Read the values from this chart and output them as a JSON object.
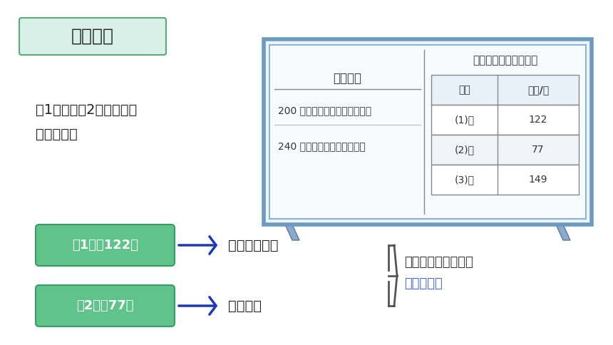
{
  "bg_color": "#ffffff",
  "title_box_text": "探索新知",
  "title_box_bg": "#d9f0e8",
  "title_box_border": "#5aaa7a",
  "question_text": "（1）班和（2）班加起来\n能获奖吗？",
  "board_bg": "#f0f4f8",
  "board_border": "#7a9abf",
  "reward_title": "回收奖励",
  "reward_rows": [
    "200 节废电池，奖励十把手电筒",
    "240 节废电池，奖励一个足球"
  ],
  "table_title": "二年级回收废电池情况",
  "table_headers": [
    "班级",
    "数量/节"
  ],
  "table_rows": [
    [
      "(1)班",
      "122"
    ],
    [
      "(2)班",
      "77"
    ],
    [
      "(3)班",
      "149"
    ]
  ],
  "box1_text": "（1）班122节",
  "box2_text": "（2）班77节",
  "box_bg": "#5ec48a",
  "box_border": "#3a9a6a",
  "arrow_text1": "一百二十多节",
  "arrow_text2": "七十多节",
  "result_text1": "大约在一百九十多，",
  "result_text2": "不能获奖。",
  "result_color1": "#333333",
  "result_color2": "#4169e1",
  "text_color": "#222222",
  "arrow_color": "#1a3ab5"
}
